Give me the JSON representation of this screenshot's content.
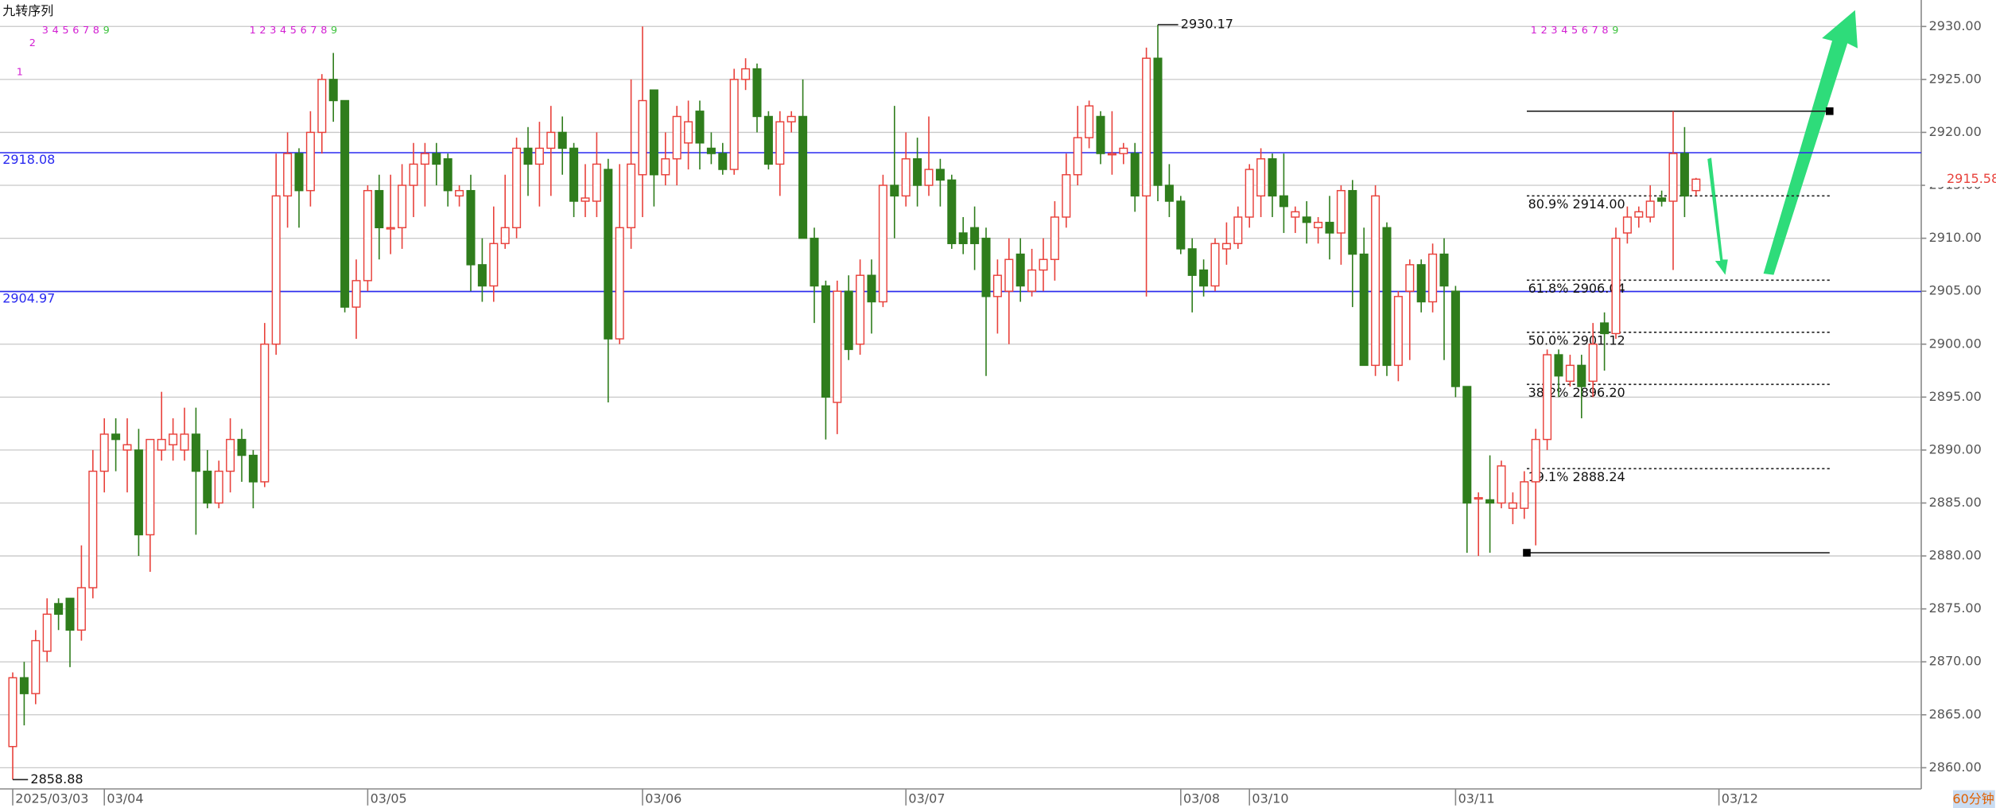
{
  "chart_data": {
    "type": "candlestick",
    "indicator_label": "九转序列",
    "period_label": "60分钟",
    "up_color": "#e8413b",
    "down_color": "#2f7d1c",
    "grid": true,
    "ylim": [
      2858,
      2932.5
    ],
    "yticks": [
      {
        "value": 2860,
        "label": "2860.00"
      },
      {
        "value": 2865,
        "label": "2865.00"
      },
      {
        "value": 2870,
        "label": "2870.00"
      },
      {
        "value": 2875,
        "label": "2875.00"
      },
      {
        "value": 2880,
        "label": "2880.00"
      },
      {
        "value": 2885,
        "label": "2885.00"
      },
      {
        "value": 2890,
        "label": "2890.00"
      },
      {
        "value": 2895,
        "label": "2895.00"
      },
      {
        "value": 2900,
        "label": "2900.00"
      },
      {
        "value": 2905,
        "label": "2905.00"
      },
      {
        "value": 2910,
        "label": "2910.00"
      },
      {
        "value": 2915,
        "label": "2915.00"
      },
      {
        "value": 2920,
        "label": "2920.00"
      },
      {
        "value": 2925,
        "label": "2925.00"
      },
      {
        "value": 2930,
        "label": "2930.00"
      }
    ],
    "x_labels": [
      {
        "index": 0,
        "label": "2025/03/03"
      },
      {
        "index": 8,
        "label": "03/04"
      },
      {
        "index": 31,
        "label": "03/05"
      },
      {
        "index": 55,
        "label": "03/06"
      },
      {
        "index": 78,
        "label": "03/07"
      },
      {
        "index": 102,
        "label": "03/08"
      },
      {
        "index": 108,
        "label": "03/10"
      },
      {
        "index": 126,
        "label": "03/11"
      },
      {
        "index": 149,
        "label": "03/12"
      }
    ],
    "open": [
      2862,
      2868.5,
      2867,
      2871,
      2875.5,
      2876,
      2873,
      2877,
      2888,
      2891.5,
      2890,
      2890,
      2882,
      2890,
      2890.5,
      2890,
      2891.5,
      2888,
      2885,
      2888,
      2891,
      2889.5,
      2887,
      2900,
      2914,
      2918,
      2914.5,
      2920,
      2925,
      2923,
      2903.5,
      2906,
      2914.5,
      2911,
      2911,
      2915,
      2917,
      2918,
      2917.5,
      2914,
      2914.5,
      2907.5,
      2905.5,
      2909.5,
      2911,
      2918.5,
      2917,
      2918.5,
      2920,
      2918.5,
      2913.5,
      2913.5,
      2916.5,
      2900.5,
      2911,
      2916,
      2924,
      2916,
      2917.5,
      2919,
      2922,
      2918.5,
      2918,
      2916.5,
      2925,
      2926,
      2921.5,
      2917,
      2921,
      2921.5,
      2910,
      2905.5,
      2894.5,
      2905,
      2900,
      2906.5,
      2904,
      2915,
      2914,
      2917.5,
      2915,
      2916.5,
      2915.5,
      2910.5,
      2911,
      2910,
      2904.5,
      2905,
      2908.5,
      2905,
      2907,
      2908,
      2912,
      2916,
      2919.5,
      2921.5,
      2918,
      2918,
      2918,
      2914,
      2927,
      2915,
      2913.5,
      2909,
      2907,
      2905.5,
      2909,
      2909.5,
      2912,
      2914,
      2917.5,
      2914,
      2912,
      2912,
      2911,
      2911.5,
      2910.5,
      2914.5,
      2908.5,
      2898,
      2911,
      2898,
      2905,
      2907.5,
      2904,
      2908.5,
      2905,
      2896,
      2885.5,
      2885.3,
      2885,
      2884.5,
      2884.5,
      2887,
      2891,
      2899,
      2896.5,
      2898,
      2896.5,
      2902,
      2901,
      2910.5,
      2912,
      2912,
      2913.8,
      2913.5,
      2918,
      2914.5
    ],
    "high": [
      2869,
      2870,
      2873,
      2876,
      2876,
      2876,
      2881,
      2890,
      2893,
      2893,
      2893,
      2892,
      2891,
      2895.5,
      2893,
      2894,
      2894,
      2890,
      2889,
      2893,
      2892,
      2890,
      2902,
      2918,
      2920,
      2918.5,
      2922,
      2925.5,
      2927.5,
      2923,
      2908,
      2915,
      2916,
      2916,
      2917,
      2919,
      2919,
      2919,
      2918,
      2915,
      2916,
      2910,
      2913,
      2916,
      2919.5,
      2920.5,
      2921,
      2922.5,
      2921.5,
      2919,
      2917,
      2920,
      2917.5,
      2917,
      2925,
      2930,
      2924,
      2920,
      2922.5,
      2923,
      2923,
      2920,
      2919,
      2926,
      2927,
      2926.5,
      2922,
      2922,
      2922,
      2925,
      2911,
      2906,
      2906,
      2906.5,
      2908,
      2908,
      2916,
      2922.5,
      2920,
      2919.5,
      2921.5,
      2917.5,
      2916,
      2912,
      2913,
      2911,
      2908,
      2910,
      2910,
      2909,
      2910,
      2913.5,
      2918,
      2922.5,
      2923,
      2922,
      2922,
      2919,
      2919,
      2928,
      2930.17,
      2917,
      2914,
      2910,
      2908,
      2910,
      2911.5,
      2913,
      2917,
      2918.5,
      2918,
      2918,
      2913,
      2913.5,
      2912,
      2914,
      2915,
      2915.5,
      2911,
      2915,
      2911.5,
      2905,
      2908,
      2908,
      2909.5,
      2910,
      2905.5,
      2896,
      2886,
      2889.5,
      2889,
      2886,
      2888,
      2892,
      2899.5,
      2899.5,
      2899,
      2899,
      2902,
      2903,
      2911,
      2913,
      2913,
      2915,
      2914.5,
      2922,
      2920.5,
      2915.7
    ],
    "low": [
      2858.88,
      2864,
      2866,
      2870,
      2873,
      2869.5,
      2872,
      2876,
      2886,
      2888,
      2886,
      2880,
      2878.5,
      2889,
      2889,
      2889,
      2882,
      2884.5,
      2884.5,
      2886,
      2887,
      2884.5,
      2886.5,
      2899,
      2911,
      2911,
      2913,
      2918,
      2921,
      2903,
      2900.5,
      2905,
      2908,
      2908.5,
      2909,
      2912,
      2913,
      2915,
      2913,
      2913,
      2905,
      2904,
      2904,
      2909,
      2910,
      2914,
      2913,
      2914,
      2916,
      2912,
      2912,
      2912,
      2894.5,
      2900,
      2909,
      2912,
      2913,
      2915,
      2915,
      2916.5,
      2916.5,
      2917,
      2916,
      2916,
      2924,
      2920,
      2916.5,
      2914,
      2920,
      2910,
      2902,
      2891,
      2891.5,
      2898.5,
      2899,
      2901,
      2903.5,
      2910,
      2913,
      2913,
      2914,
      2913,
      2909,
      2908.5,
      2907,
      2897,
      2901,
      2900,
      2904,
      2904.5,
      2905,
      2906,
      2911,
      2915,
      2918.5,
      2917,
      2916,
      2917,
      2912.5,
      2904.5,
      2913.5,
      2912,
      2908.5,
      2903,
      2904.5,
      2905,
      2907.5,
      2909,
      2911,
      2912,
      2912,
      2910.5,
      2910.5,
      2909.5,
      2909.5,
      2908,
      2907.5,
      2903.5,
      2898,
      2897,
      2897,
      2896.5,
      2898.5,
      2903,
      2903,
      2898.5,
      2895,
      2880.3,
      2880,
      2880.3,
      2884.5,
      2883,
      2883.5,
      2881,
      2890,
      2895,
      2896,
      2893,
      2895,
      2897.5,
      2900.5,
      2909.5,
      2911,
      2911.5,
      2913,
      2907,
      2912,
      2914
    ],
    "close": [
      2868.5,
      2867,
      2872,
      2874.5,
      2874.5,
      2873,
      2877,
      2888,
      2891.5,
      2891,
      2890.5,
      2882,
      2891,
      2891,
      2891.5,
      2891.5,
      2888,
      2885,
      2888,
      2891,
      2889.5,
      2887,
      2900,
      2914,
      2918,
      2914.5,
      2920,
      2925,
      2923,
      2903.5,
      2906,
      2914.5,
      2911,
      2911,
      2915,
      2917,
      2918,
      2917,
      2914.5,
      2914.5,
      2907.5,
      2905.5,
      2909.5,
      2911,
      2918.5,
      2917,
      2918.5,
      2920,
      2918.5,
      2913.5,
      2913.8,
      2917,
      2900.5,
      2911,
      2917,
      2923,
      2916,
      2917.5,
      2921.5,
      2921,
      2919,
      2918,
      2916.5,
      2925,
      2926,
      2921.5,
      2917,
      2921,
      2921.5,
      2910,
      2905.5,
      2895,
      2905,
      2899.5,
      2906.5,
      2904,
      2915,
      2914,
      2917.5,
      2915,
      2916.5,
      2915.5,
      2909.5,
      2909.5,
      2909.5,
      2904.5,
      2906.5,
      2908,
      2905.5,
      2907,
      2908,
      2912,
      2916,
      2919.5,
      2922.5,
      2918,
      2918,
      2918.5,
      2914,
      2927,
      2915,
      2913.5,
      2909,
      2906.5,
      2905.5,
      2909.5,
      2909.5,
      2912,
      2916.5,
      2917.5,
      2914,
      2913,
      2912.5,
      2911.5,
      2911.5,
      2910.5,
      2914.5,
      2908.5,
      2898,
      2914,
      2898,
      2904.5,
      2907.5,
      2904,
      2908.5,
      2905.5,
      2896,
      2885,
      2885.5,
      2885,
      2888.5,
      2885,
      2887,
      2891,
      2899,
      2897,
      2898,
      2896,
      2900,
      2901,
      2910,
      2912,
      2912.5,
      2913.5,
      2913.5,
      2918,
      2914,
      2915.58
    ],
    "last_price": 2915.58,
    "high_annotation": 2930.17,
    "low_annotation": 2858.88,
    "levels": [
      2918.08,
      2904.97
    ],
    "fib_high": 2922,
    "fib_low": 2880.3,
    "fib_levels": [
      {
        "value": 2914.0,
        "label": "80.9% 2914.00"
      },
      {
        "value": 2906.04,
        "label": "61.8% 2906.04"
      },
      {
        "value": 2901.12,
        "label": "50.0% 2901.12"
      },
      {
        "value": 2896.2,
        "label": "38.2% 2896.20"
      },
      {
        "value": 2888.24,
        "label": "19.1% 2888.24"
      }
    ],
    "td_sequences": [
      [
        "1",
        "2",
        "3",
        "4",
        "5",
        "6",
        "7",
        "8",
        "9"
      ],
      [
        "1",
        "2",
        "3",
        "4",
        "5",
        "6",
        "7",
        "8",
        "9"
      ],
      [
        "1",
        "2",
        "3",
        "4",
        "5",
        "6",
        "7",
        "8",
        "9"
      ]
    ]
  }
}
